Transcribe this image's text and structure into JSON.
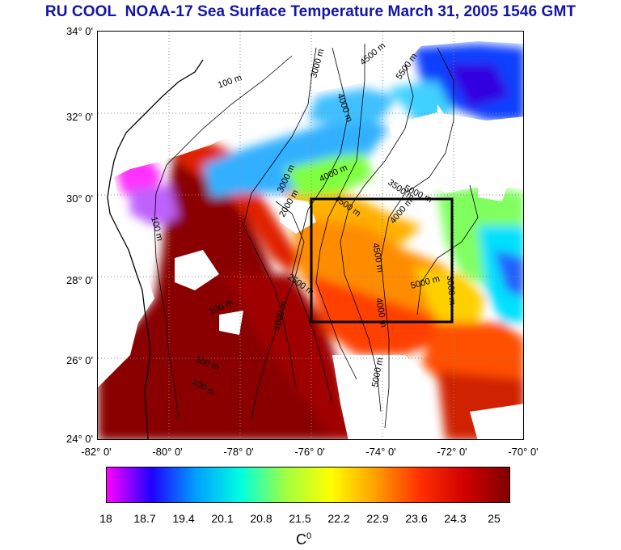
{
  "title": "RU COOL  NOAA-17 Sea Surface Temperature March 31, 2005 1546 GMT",
  "map": {
    "lat_labels": [
      "34° 0'",
      "32° 0'",
      "30° 0'",
      "28° 0'",
      "26° 0'",
      "24° 0'"
    ],
    "lon_labels": [
      "-82° 0'",
      "-80° 0'",
      "-78° 0'",
      "-76° 0'",
      "-74° 0'",
      "-72° 0'",
      "-70° 0'"
    ],
    "lat_range": [
      24,
      34
    ],
    "lon_range": [
      -82,
      -70
    ],
    "contour_labels": [
      "100 m",
      "3000 m",
      "4500 m",
      "5500 m",
      "4000 m",
      "3000 m",
      "4000 m",
      "5000 m",
      "3500 m",
      "4500 m",
      "4000 m",
      "100 m",
      "2000 m",
      "4500 m",
      "5000 m",
      "3000 m",
      "2500 m",
      "1000 m",
      "4000 m",
      "100 m",
      "100 m",
      "100 m",
      "5000 m"
    ],
    "study_box": {
      "lon": [
        -76,
        -72
      ],
      "lat": [
        27,
        30
      ]
    }
  },
  "colorbar": {
    "ticks": [
      "18",
      "18.7",
      "19.4",
      "20.1",
      "20.8",
      "21.5",
      "22.2",
      "22.9",
      "23.6",
      "24.3",
      "25"
    ],
    "unit": "C",
    "unit_sup": "0",
    "colors": [
      "#ff00ff",
      "#2000ff",
      "#00a0ff",
      "#00ffe0",
      "#a0ff40",
      "#ffff00",
      "#ffa000",
      "#ff3000",
      "#d00000",
      "#800000"
    ]
  }
}
